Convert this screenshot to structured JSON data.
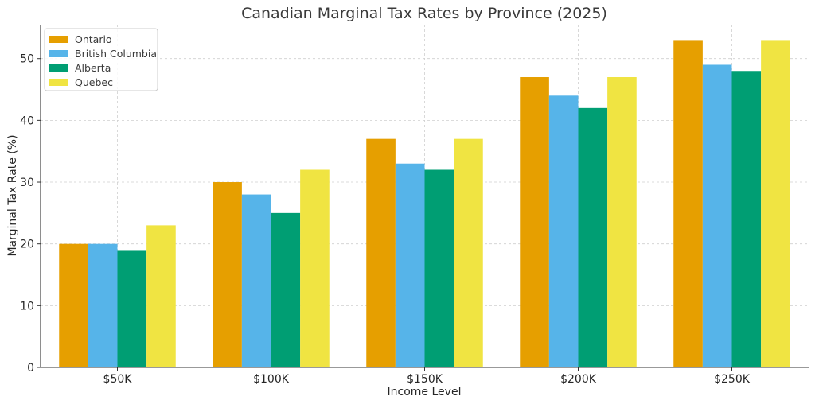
{
  "chart_data": {
    "type": "bar",
    "title": "Canadian Marginal Tax Rates by Province (2025)",
    "xlabel": "Income Level",
    "ylabel": "Marginal Tax Rate (%)",
    "categories": [
      "$50K",
      "$100K",
      "$150K",
      "$200K",
      "$250K"
    ],
    "ylim": [
      0,
      55.5
    ],
    "yticks": [
      0,
      10,
      20,
      30,
      40,
      50
    ],
    "grid": true,
    "legend_position": "top-left",
    "series": [
      {
        "name": "Ontario",
        "color": "#E69F00",
        "values": [
          20,
          30,
          37,
          47,
          53
        ]
      },
      {
        "name": "British Columbia",
        "color": "#56B4E9",
        "values": [
          20,
          28,
          33,
          44,
          49
        ]
      },
      {
        "name": "Alberta",
        "color": "#009E73",
        "values": [
          19,
          25,
          32,
          42,
          48
        ]
      },
      {
        "name": "Quebec",
        "color": "#F0E442",
        "values": [
          23,
          32,
          37,
          47,
          53
        ]
      }
    ]
  }
}
